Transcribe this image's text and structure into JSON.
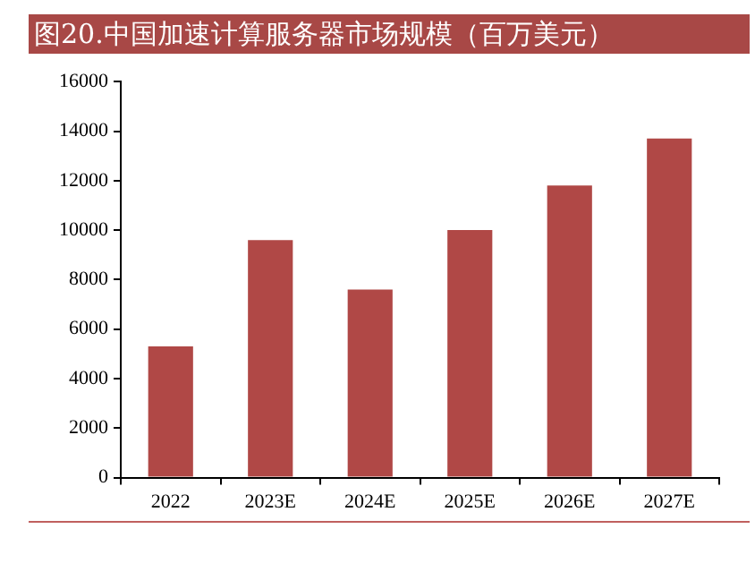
{
  "chart_data": {
    "type": "bar",
    "title": "图20.中国加速计算服务器市场规模（百万美元）",
    "categories": [
      "2022",
      "2023E",
      "2024E",
      "2025E",
      "2026E",
      "2027E"
    ],
    "values": [
      5300,
      9600,
      7600,
      10000,
      11800,
      13700
    ],
    "color": "#b04846",
    "ylim": [
      0,
      16000
    ],
    "yticks": [
      0,
      2000,
      4000,
      6000,
      8000,
      10000,
      12000,
      14000,
      16000
    ],
    "grid": false,
    "legend": false
  }
}
